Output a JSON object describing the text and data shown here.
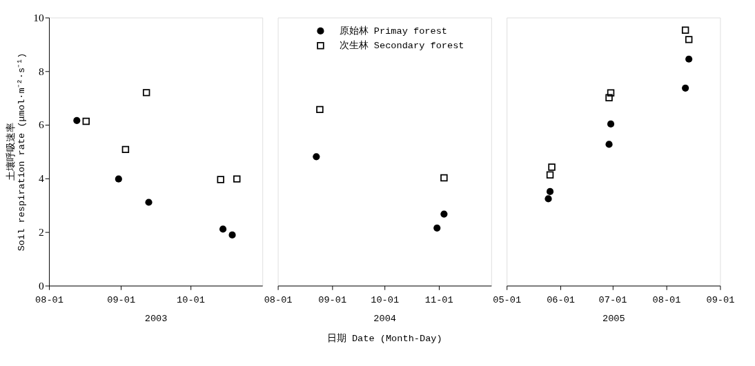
{
  "chart_data": [
    {
      "type": "scatter",
      "xlabel": "2003",
      "ylabel": "土壤呼吸速率\nSoil respiration rate (μmol·m⁻²·s⁻¹)",
      "xlim": [
        "2003-08-01",
        "2003-11-01"
      ],
      "xticks": [
        {
          "value": "2003-08-01",
          "label": "08-01"
        },
        {
          "value": "2003-09-01",
          "label": "09-01"
        },
        {
          "value": "2003-10-01",
          "label": "10-01"
        }
      ],
      "ylim": [
        0,
        10
      ],
      "yticks": [
        0,
        2,
        4,
        6,
        8,
        10
      ],
      "series": [
        {
          "color": "#000000",
          "marker": "circle",
          "x": [
            "2003-08-13",
            "2003-08-31",
            "2003-09-13",
            "2003-10-15",
            "2003-10-19"
          ],
          "values": [
            6.16,
            3.98,
            3.11,
            2.11,
            1.89
          ]
        },
        {
          "color": "#000000",
          "marker": "square",
          "x": [
            "2003-08-17",
            "2003-09-03",
            "2003-09-12",
            "2003-10-14",
            "2003-10-21"
          ],
          "values": [
            6.13,
            5.08,
            7.2,
            3.96,
            3.98
          ]
        }
      ]
    },
    {
      "type": "scatter",
      "xlabel": "2004",
      "annotations": [
        "日期 Date (Month-Day)"
      ],
      "xlim": [
        "2004-08-01",
        "2004-12-01"
      ],
      "xticks": [
        {
          "value": "2004-08-01",
          "label": "08-01"
        },
        {
          "value": "2004-09-01",
          "label": "09-01"
        },
        {
          "value": "2004-10-01",
          "label": "10-01"
        },
        {
          "value": "2004-11-01",
          "label": "11-01"
        }
      ],
      "ylim": [
        0,
        10
      ],
      "tick_labels": "x",
      "legend": "top",
      "series": [
        {
          "name": "原始林 Primay forest",
          "color": "#000000",
          "marker": "circle",
          "x": [
            "2004-08-23",
            "2004-10-31",
            "2004-11-04"
          ],
          "values": [
            4.81,
            2.15,
            2.67
          ]
        },
        {
          "name": "次生林 Secondary forest",
          "color": "#000000",
          "marker": "square",
          "x": [
            "2004-08-25",
            "2004-11-04"
          ],
          "values": [
            6.57,
            4.02
          ]
        }
      ]
    },
    {
      "type": "scatter",
      "xlabel": "2005",
      "xlim": [
        "2005-05-01",
        "2005-09-01"
      ],
      "xticks": [
        {
          "value": "2005-05-01",
          "label": "05-01"
        },
        {
          "value": "2005-06-01",
          "label": "06-01"
        },
        {
          "value": "2005-07-01",
          "label": "07-01"
        },
        {
          "value": "2005-08-01",
          "label": "08-01"
        },
        {
          "value": "2005-09-01",
          "label": "09-01"
        }
      ],
      "ylim": [
        0,
        10
      ],
      "tick_labels": "x",
      "series": [
        {
          "color": "#000000",
          "marker": "circle",
          "x": [
            "2005-05-25",
            "2005-05-26",
            "2005-06-29",
            "2005-06-30",
            "2005-08-12",
            "2005-08-14"
          ],
          "values": [
            3.24,
            3.51,
            5.27,
            6.03,
            7.37,
            8.45
          ]
        },
        {
          "color": "#000000",
          "marker": "square",
          "x": [
            "2005-05-26",
            "2005-05-27",
            "2005-06-29",
            "2005-06-30",
            "2005-08-12",
            "2005-08-14"
          ],
          "values": [
            4.13,
            4.42,
            7.01,
            7.19,
            9.53,
            9.18
          ]
        }
      ]
    }
  ]
}
